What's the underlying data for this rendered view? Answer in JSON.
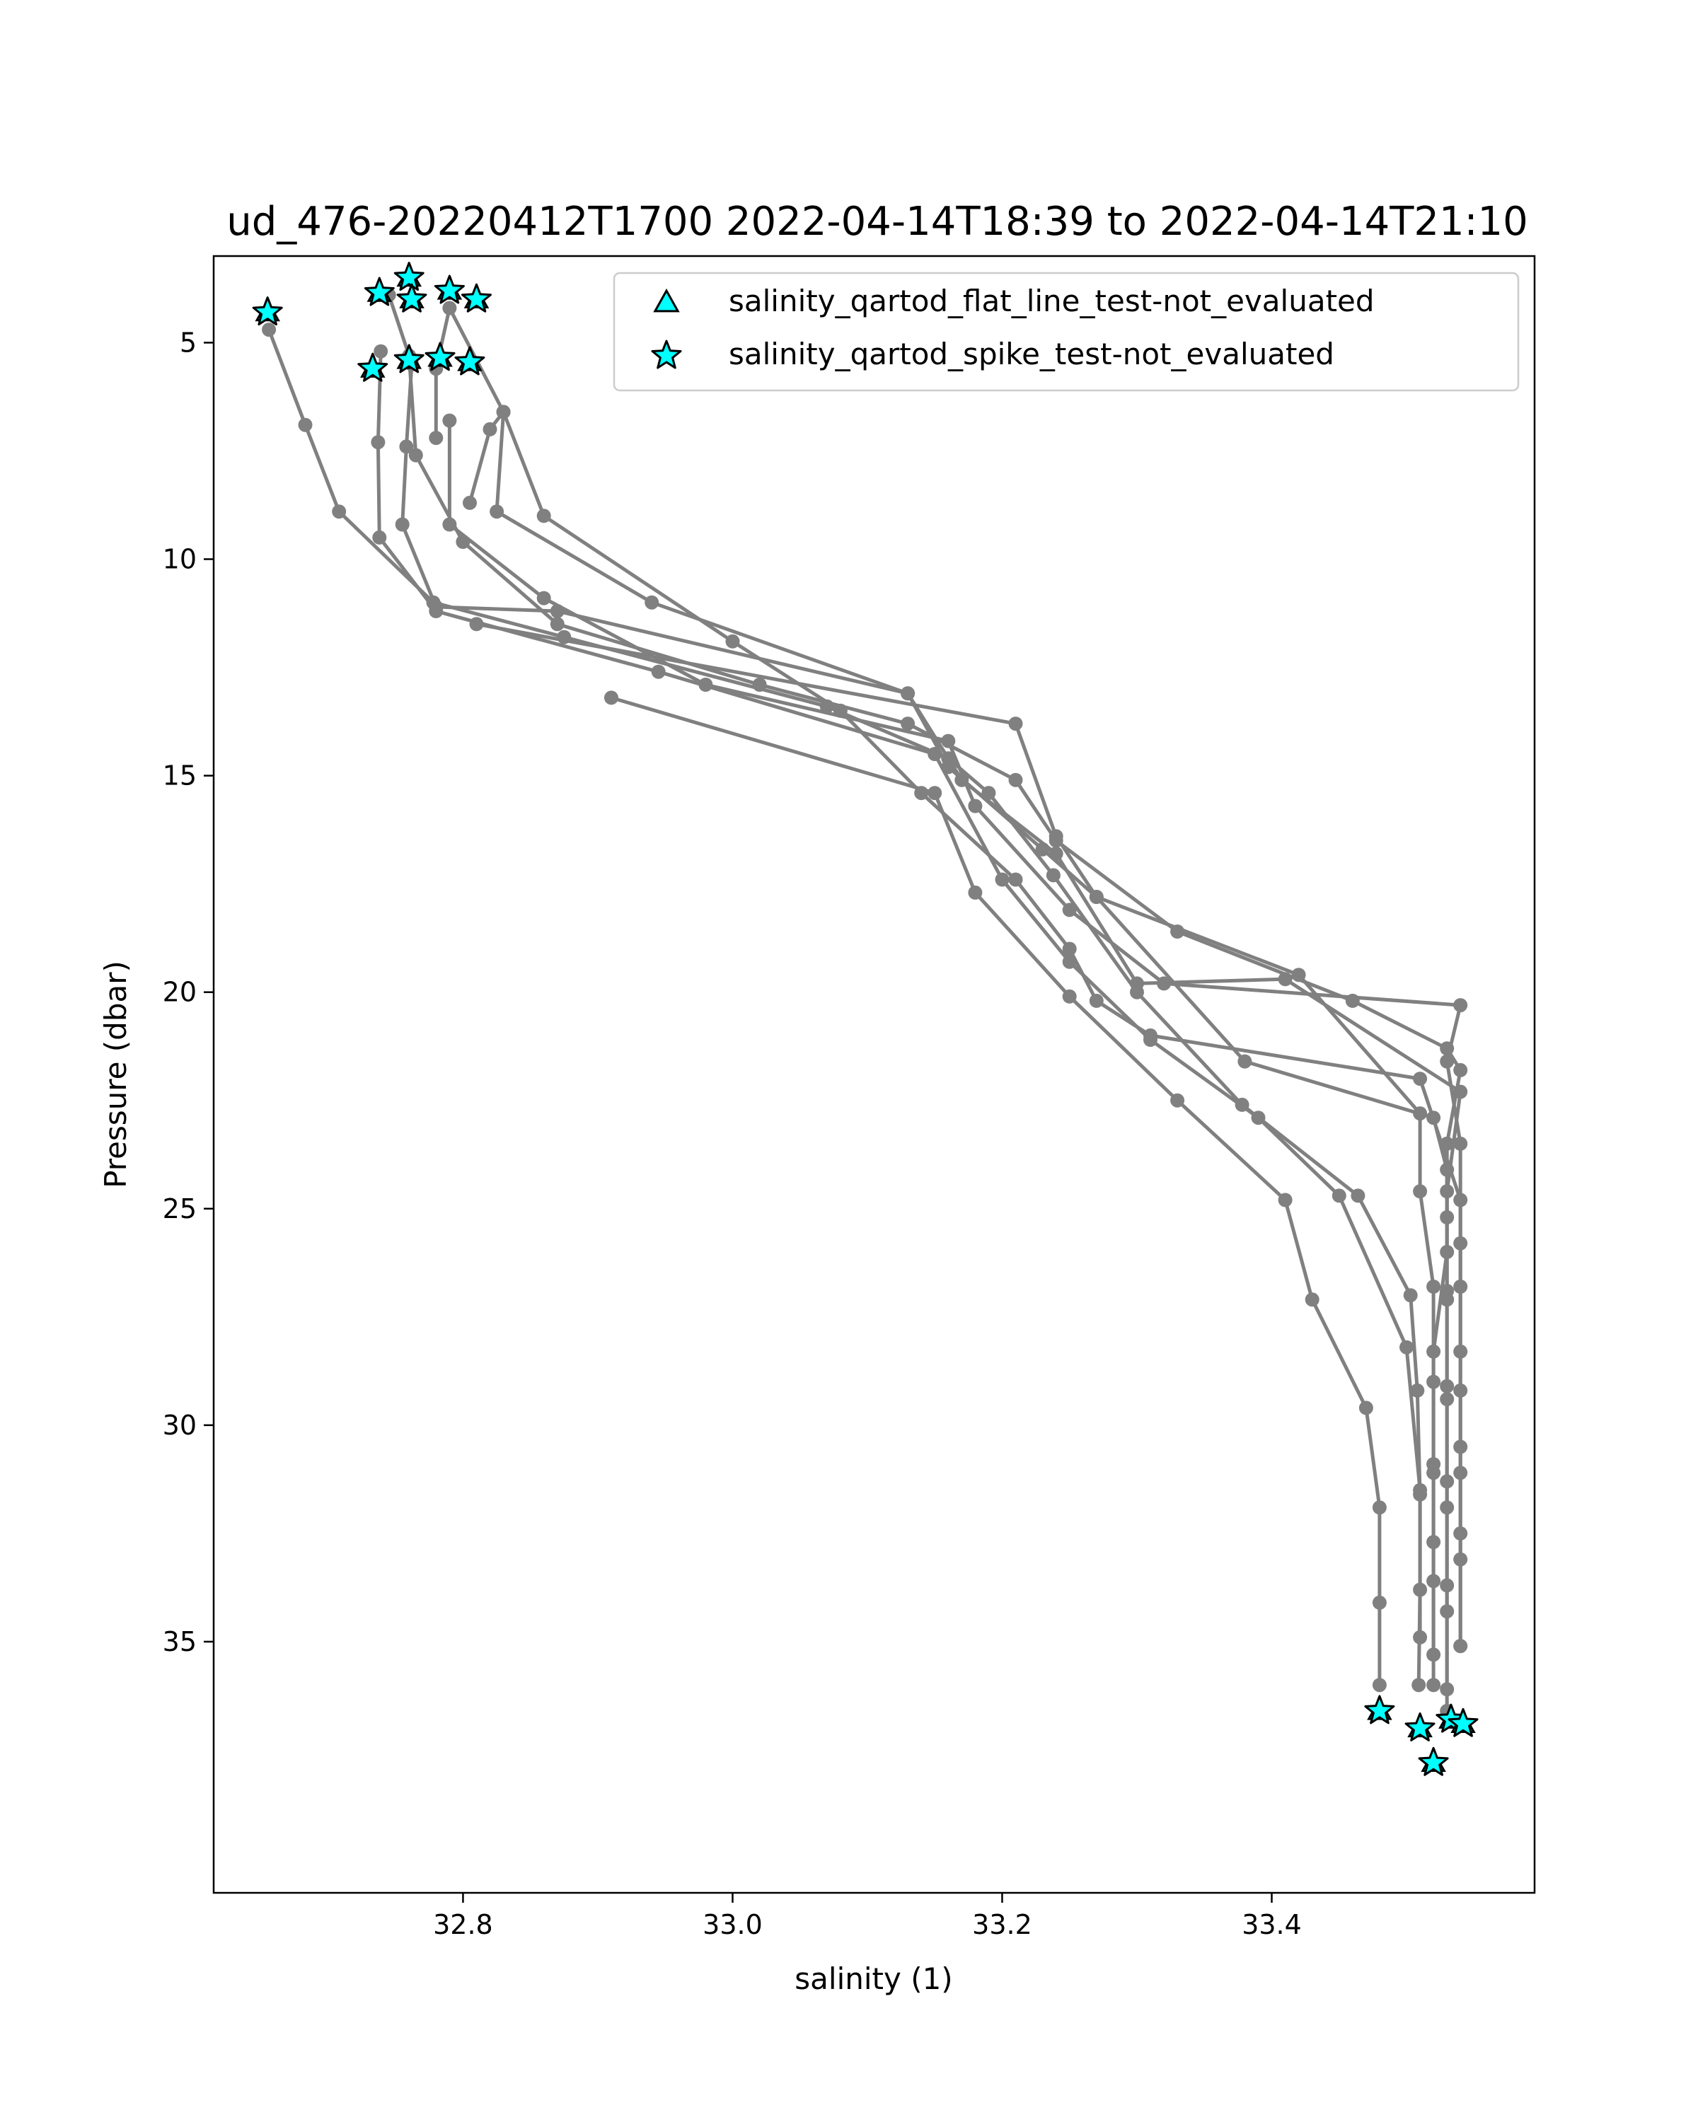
{
  "chart_data": {
    "type": "line",
    "title": "ud_476-20220412T1700 2022-04-14T18:39 to 2022-04-14T21:10",
    "xlabel": "salinity (1)",
    "ylabel": "Pressure (dbar)",
    "xlim": [
      32.615,
      33.595
    ],
    "ylim": [
      40.8,
      3.0
    ],
    "y_inverted": true,
    "xticks": [
      32.8,
      33.0,
      33.2,
      33.4
    ],
    "yticks": [
      5,
      10,
      15,
      20,
      25,
      30,
      35
    ],
    "grid": false,
    "legend_position": "top-right",
    "colors": {
      "line": "#808080",
      "marker_fill": "#00ffff",
      "marker_edge": "#000000"
    },
    "legend": [
      {
        "label": "salinity_qartod_flat_line_test-not_evaluated",
        "marker": "triangle"
      },
      {
        "label": "salinity_qartod_spike_test-not_evaluated",
        "marker": "star"
      }
    ],
    "series": [
      {
        "values": [
          [
            32.656,
            4.7
          ],
          [
            32.683,
            6.9
          ],
          [
            32.708,
            8.9
          ],
          [
            32.778,
            11.0
          ],
          [
            32.875,
            11.8
          ],
          [
            33.07,
            13.4
          ],
          [
            33.16,
            14.6
          ],
          [
            33.19,
            15.4
          ],
          [
            33.238,
            17.3
          ],
          [
            33.3,
            20.0
          ],
          [
            33.378,
            22.6
          ],
          [
            33.464,
            24.7
          ],
          [
            33.503,
            27.0
          ],
          [
            33.508,
            29.2
          ],
          [
            33.51,
            31.6
          ],
          [
            33.51,
            33.8
          ],
          [
            33.509,
            36.0
          ]
        ]
      },
      {
        "values": [
          [
            32.739,
            5.2
          ],
          [
            32.737,
            7.3
          ],
          [
            32.738,
            9.5
          ],
          [
            32.78,
            11.2
          ],
          [
            32.945,
            12.6
          ],
          [
            33.15,
            14.5
          ],
          [
            33.2,
            17.4
          ],
          [
            33.25,
            19.3
          ],
          [
            33.31,
            21.1
          ],
          [
            33.39,
            22.9
          ],
          [
            33.45,
            24.7
          ],
          [
            33.5,
            28.2
          ],
          [
            33.51,
            31.5
          ],
          [
            33.51,
            34.9
          ]
        ]
      },
      {
        "values": [
          [
            32.762,
            5.5
          ],
          [
            32.758,
            7.4
          ],
          [
            32.755,
            9.2
          ],
          [
            32.78,
            11.1
          ],
          [
            32.87,
            11.2
          ],
          [
            33.13,
            13.1
          ],
          [
            33.17,
            15.1
          ],
          [
            33.24,
            16.8
          ],
          [
            33.3,
            19.8
          ],
          [
            33.41,
            19.7
          ],
          [
            33.54,
            22.3
          ],
          [
            33.53,
            24.6
          ],
          [
            33.53,
            26.9
          ],
          [
            33.53,
            29.1
          ],
          [
            33.53,
            31.3
          ],
          [
            33.53,
            33.7
          ],
          [
            33.53,
            36.1
          ]
        ]
      },
      {
        "values": [
          [
            32.79,
            6.8
          ],
          [
            32.79,
            9.2
          ],
          [
            32.86,
            10.9
          ],
          [
            32.98,
            12.9
          ],
          [
            33.16,
            14.2
          ],
          [
            33.18,
            15.7
          ],
          [
            33.25,
            18.1
          ],
          [
            33.32,
            19.8
          ],
          [
            33.54,
            20.3
          ],
          [
            33.53,
            21.6
          ],
          [
            33.54,
            23.5
          ],
          [
            33.54,
            25.8
          ],
          [
            33.54,
            28.3
          ],
          [
            33.54,
            30.5
          ],
          [
            33.54,
            32.5
          ],
          [
            33.54,
            35.1
          ]
        ]
      },
      {
        "values": [
          [
            32.805,
            8.7
          ],
          [
            32.82,
            7.0
          ],
          [
            32.83,
            6.6
          ],
          [
            32.825,
            8.9
          ],
          [
            32.94,
            11.0
          ],
          [
            33.13,
            13.1
          ],
          [
            33.16,
            14.8
          ],
          [
            33.23,
            16.7
          ],
          [
            33.27,
            17.8
          ],
          [
            33.38,
            21.6
          ],
          [
            33.52,
            22.9
          ],
          [
            33.53,
            24.1
          ],
          [
            33.53,
            26.0
          ],
          [
            33.52,
            28.3
          ],
          [
            33.52,
            30.9
          ],
          [
            33.52,
            32.7
          ],
          [
            33.52,
            35.3
          ]
        ]
      },
      {
        "values": [
          [
            32.745,
            3.9
          ],
          [
            32.76,
            5.3
          ],
          [
            32.765,
            7.6
          ],
          [
            32.8,
            9.6
          ],
          [
            32.87,
            11.5
          ],
          [
            33.02,
            12.9
          ],
          [
            33.13,
            13.8
          ],
          [
            33.21,
            15.1
          ],
          [
            33.24,
            16.5
          ],
          [
            33.33,
            18.6
          ],
          [
            33.46,
            20.2
          ],
          [
            33.53,
            21.3
          ],
          [
            33.54,
            21.8
          ],
          [
            33.53,
            23.5
          ],
          [
            33.53,
            25.2
          ],
          [
            33.53,
            27.1
          ],
          [
            33.53,
            29.4
          ],
          [
            33.53,
            31.9
          ],
          [
            33.53,
            34.3
          ],
          [
            33.53,
            36.6
          ]
        ]
      },
      {
        "values": [
          [
            32.78,
            7.2
          ],
          [
            32.78,
            5.6
          ],
          [
            32.79,
            4.2
          ],
          [
            32.83,
            6.6
          ],
          [
            32.86,
            9.0
          ],
          [
            33.0,
            11.9
          ],
          [
            33.08,
            13.5
          ],
          [
            33.14,
            15.4
          ],
          [
            33.21,
            17.4
          ],
          [
            33.25,
            19.0
          ],
          [
            33.27,
            20.2
          ],
          [
            33.31,
            21.0
          ],
          [
            33.51,
            22.0
          ],
          [
            33.54,
            24.8
          ],
          [
            33.54,
            26.8
          ],
          [
            33.54,
            29.2
          ],
          [
            33.54,
            31.1
          ],
          [
            33.54,
            33.1
          ],
          [
            33.54,
            35.1
          ]
        ]
      },
      {
        "values": [
          [
            32.91,
            13.2
          ],
          [
            33.15,
            15.4
          ],
          [
            33.18,
            17.7
          ],
          [
            33.25,
            20.1
          ],
          [
            33.33,
            22.5
          ],
          [
            33.41,
            24.8
          ],
          [
            33.43,
            27.1
          ],
          [
            33.47,
            29.6
          ],
          [
            33.48,
            31.9
          ],
          [
            33.48,
            34.1
          ],
          [
            33.48,
            36.0
          ]
        ]
      },
      {
        "values": [
          [
            32.81,
            11.5
          ],
          [
            33.21,
            13.8
          ],
          [
            33.24,
            16.4
          ],
          [
            33.27,
            17.8
          ],
          [
            33.42,
            19.6
          ],
          [
            33.51,
            22.8
          ],
          [
            33.51,
            24.6
          ],
          [
            33.52,
            26.8
          ],
          [
            33.52,
            29.0
          ],
          [
            33.52,
            31.1
          ],
          [
            33.52,
            33.6
          ],
          [
            33.52,
            36.0
          ]
        ]
      }
    ],
    "spike_flags": [
      {
        "x": 32.655,
        "y": 4.3
      },
      {
        "x": 32.738,
        "y": 3.85
      },
      {
        "x": 32.76,
        "y": 3.5
      },
      {
        "x": 32.762,
        "y": 4.0
      },
      {
        "x": 32.79,
        "y": 3.8
      },
      {
        "x": 32.81,
        "y": 4.0
      },
      {
        "x": 32.733,
        "y": 5.6
      },
      {
        "x": 32.76,
        "y": 5.4
      },
      {
        "x": 32.783,
        "y": 5.35
      },
      {
        "x": 32.805,
        "y": 5.45
      },
      {
        "x": 33.48,
        "y": 36.6
      },
      {
        "x": 33.51,
        "y": 37.0
      },
      {
        "x": 33.533,
        "y": 36.8
      },
      {
        "x": 33.542,
        "y": 36.9
      },
      {
        "x": 33.52,
        "y": 37.8
      }
    ]
  }
}
